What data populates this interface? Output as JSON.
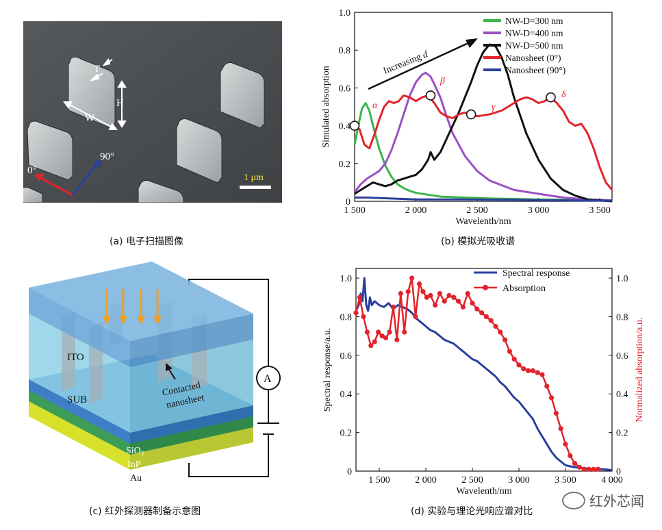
{
  "panel_a": {
    "labels": {
      "T": "T",
      "H": "H",
      "W": "W",
      "deg0": "0°",
      "deg90": "90°",
      "scale": "1 μm"
    },
    "caption": "(a) 电子扫描图像"
  },
  "panel_b": {
    "caption": "(b) 模拟光吸收谱",
    "annotations": {
      "increasing": "Increasing ",
      "d": "d",
      "alpha": "α",
      "beta": "β",
      "gamma": "γ",
      "delta": "δ"
    }
  },
  "panel_c": {
    "caption": "(c) 红外探测器制备示意图",
    "labels": {
      "ito": "ITO",
      "sub": "SUB",
      "contacted1": "Contacted",
      "contacted2": "nanosheet",
      "ammeter": "A",
      "sio2": "SiO",
      "sio2_sub": "2",
      "inp": "InP",
      "au": "Au"
    }
  },
  "panel_d": {
    "caption": "(d) 实验与理论光响应谱对比"
  },
  "watermark": "红外芯闻",
  "colors": {
    "green": "#3db54a",
    "purple": "#9b4fc4",
    "black": "#111111",
    "red": "#e3232b",
    "blue": "#2a3f9e"
  },
  "chart_data": [
    {
      "type": "line",
      "xlabel": "Wavelenth/nm",
      "ylabel": "Simulated absorption",
      "xlim": [
        1500,
        3600
      ],
      "ylim": [
        0,
        1.0
      ],
      "xticks": [
        1500,
        2000,
        2500,
        3000,
        3500
      ],
      "xtick_labels": [
        "1 500",
        "2 000",
        "2 500",
        "3 000",
        "3 500"
      ],
      "yticks": [
        0,
        0.2,
        0.4,
        0.6,
        0.8,
        1.0
      ],
      "ytick_labels": [
        "0",
        "0.2",
        "0.4",
        "0.6",
        "0.8",
        "1.0"
      ],
      "legend_position": "top-right",
      "series": [
        {
          "name": "NW-D=300 nm",
          "color": "#3db54a",
          "x": [
            1500,
            1530,
            1560,
            1590,
            1620,
            1650,
            1700,
            1750,
            1800,
            1850,
            1900,
            1950,
            2000,
            2100,
            2200,
            2400,
            2600,
            3000,
            3600
          ],
          "y": [
            0.3,
            0.4,
            0.49,
            0.52,
            0.48,
            0.4,
            0.28,
            0.19,
            0.13,
            0.09,
            0.07,
            0.055,
            0.045,
            0.035,
            0.025,
            0.02,
            0.015,
            0.01,
            0.005
          ]
        },
        {
          "name": "NW-D=400 nm",
          "color": "#9b4fc4",
          "x": [
            1500,
            1550,
            1600,
            1650,
            1700,
            1750,
            1800,
            1850,
            1900,
            1950,
            2000,
            2050,
            2080,
            2120,
            2150,
            2200,
            2250,
            2300,
            2400,
            2500,
            2600,
            2800,
            3000,
            3200,
            3400,
            3600
          ],
          "y": [
            0.05,
            0.09,
            0.12,
            0.14,
            0.16,
            0.2,
            0.27,
            0.36,
            0.46,
            0.56,
            0.63,
            0.67,
            0.68,
            0.66,
            0.62,
            0.55,
            0.45,
            0.36,
            0.24,
            0.16,
            0.11,
            0.06,
            0.04,
            0.02,
            0.01,
            0.005
          ]
        },
        {
          "name": "NW-D=500 nm",
          "color": "#111111",
          "x": [
            1500,
            1550,
            1600,
            1650,
            1700,
            1750,
            1800,
            1850,
            1900,
            1950,
            2000,
            2050,
            2100,
            2120,
            2150,
            2200,
            2250,
            2300,
            2350,
            2400,
            2450,
            2500,
            2550,
            2600,
            2650,
            2700,
            2750,
            2800,
            2900,
            3000,
            3100,
            3200,
            3300,
            3400,
            3500,
            3600
          ],
          "y": [
            0.04,
            0.06,
            0.08,
            0.1,
            0.09,
            0.08,
            0.09,
            0.11,
            0.12,
            0.13,
            0.14,
            0.17,
            0.22,
            0.26,
            0.22,
            0.26,
            0.33,
            0.4,
            0.47,
            0.55,
            0.63,
            0.72,
            0.79,
            0.83,
            0.82,
            0.76,
            0.67,
            0.55,
            0.36,
            0.22,
            0.12,
            0.06,
            0.03,
            0.01,
            0.005,
            0.0
          ]
        },
        {
          "name": "Nanosheet (0°)",
          "color": "#e3232b",
          "x": [
            1500,
            1540,
            1580,
            1620,
            1660,
            1700,
            1740,
            1780,
            1820,
            1860,
            1900,
            1950,
            2000,
            2050,
            2100,
            2150,
            2200,
            2250,
            2300,
            2350,
            2400,
            2450,
            2500,
            2600,
            2700,
            2800,
            2850,
            2900,
            2950,
            3000,
            3050,
            3100,
            3150,
            3200,
            3250,
            3300,
            3350,
            3400,
            3450,
            3500,
            3550,
            3600
          ],
          "y": [
            0.4,
            0.38,
            0.3,
            0.28,
            0.35,
            0.43,
            0.5,
            0.53,
            0.52,
            0.53,
            0.56,
            0.55,
            0.53,
            0.55,
            0.56,
            0.52,
            0.47,
            0.45,
            0.44,
            0.46,
            0.47,
            0.46,
            0.45,
            0.46,
            0.48,
            0.52,
            0.54,
            0.55,
            0.54,
            0.52,
            0.53,
            0.55,
            0.52,
            0.48,
            0.42,
            0.4,
            0.41,
            0.36,
            0.28,
            0.18,
            0.1,
            0.06
          ]
        },
        {
          "name": "Nanosheet (90°)",
          "color": "#2a3f9e",
          "x": [
            1500,
            1600,
            1800,
            2000,
            2400,
            2800,
            3200,
            3600
          ],
          "y": [
            0.02,
            0.02,
            0.015,
            0.01,
            0.01,
            0.008,
            0.005,
            0.003
          ]
        }
      ],
      "markers": [
        {
          "x": 1500,
          "y": 0.4
        },
        {
          "x": 2120,
          "y": 0.56
        },
        {
          "x": 2450,
          "y": 0.46
        },
        {
          "x": 3100,
          "y": 0.55
        }
      ]
    },
    {
      "type": "line",
      "xlabel": "Wavelenth/nm",
      "ylabel": "Spectral response/a.u.",
      "y2label": "Normalized absorption/a.u.",
      "xlim": [
        1250,
        4000
      ],
      "ylim": [
        0,
        1.05
      ],
      "xticks": [
        1500,
        2000,
        2500,
        3000,
        3500,
        4000
      ],
      "xtick_labels": [
        "1 500",
        "2 000",
        "2 500",
        "3 000",
        "3 500",
        "4 000"
      ],
      "yticks": [
        0,
        0.2,
        0.4,
        0.6,
        0.8,
        1.0
      ],
      "ytick_labels": [
        "0",
        "0.2",
        "0.4",
        "0.6",
        "0.8",
        "1.0"
      ],
      "legend_position": "top-center",
      "series": [
        {
          "name": "Spectral response",
          "color": "#2a3f9e",
          "x": [
            1250,
            1280,
            1300,
            1320,
            1340,
            1360,
            1380,
            1400,
            1420,
            1450,
            1500,
            1550,
            1600,
            1650,
            1700,
            1750,
            1800,
            1850,
            1900,
            1950,
            2000,
            2050,
            2100,
            2150,
            2200,
            2250,
            2300,
            2350,
            2400,
            2450,
            2500,
            2550,
            2600,
            2650,
            2700,
            2750,
            2800,
            2850,
            2900,
            2950,
            3000,
            3050,
            3100,
            3150,
            3200,
            3250,
            3300,
            3350,
            3400,
            3450,
            3500,
            3600,
            3700,
            3800,
            3900,
            4000
          ],
          "y": [
            0.83,
            0.86,
            0.92,
            0.88,
            1.0,
            0.86,
            0.83,
            0.9,
            0.86,
            0.88,
            0.86,
            0.85,
            0.87,
            0.84,
            0.86,
            0.85,
            0.84,
            0.82,
            0.79,
            0.77,
            0.75,
            0.73,
            0.72,
            0.7,
            0.68,
            0.67,
            0.66,
            0.64,
            0.62,
            0.6,
            0.58,
            0.57,
            0.55,
            0.53,
            0.51,
            0.49,
            0.46,
            0.44,
            0.41,
            0.38,
            0.36,
            0.33,
            0.3,
            0.27,
            0.22,
            0.18,
            0.14,
            0.1,
            0.07,
            0.05,
            0.03,
            0.02,
            0.015,
            0.01,
            0.01,
            0.005
          ]
        },
        {
          "name": "Absorption",
          "color": "#e3232b",
          "x": [
            1250,
            1290,
            1330,
            1370,
            1410,
            1450,
            1490,
            1530,
            1570,
            1610,
            1650,
            1690,
            1730,
            1770,
            1810,
            1850,
            1890,
            1930,
            1970,
            2010,
            2050,
            2100,
            2150,
            2200,
            2250,
            2300,
            2350,
            2400,
            2450,
            2500,
            2550,
            2600,
            2650,
            2700,
            2750,
            2800,
            2850,
            2900,
            2950,
            3000,
            3050,
            3100,
            3150,
            3200,
            3250,
            3300,
            3350,
            3400,
            3450,
            3500,
            3550,
            3600,
            3650,
            3700,
            3750,
            3800,
            3850
          ],
          "y": [
            0.82,
            0.9,
            0.8,
            0.72,
            0.65,
            0.67,
            0.72,
            0.7,
            0.69,
            0.72,
            0.85,
            0.68,
            0.92,
            0.72,
            0.93,
            1.0,
            0.8,
            0.97,
            0.93,
            0.9,
            0.91,
            0.86,
            0.92,
            0.88,
            0.91,
            0.9,
            0.88,
            0.85,
            0.92,
            0.87,
            0.84,
            0.82,
            0.8,
            0.78,
            0.75,
            0.72,
            0.68,
            0.62,
            0.58,
            0.55,
            0.53,
            0.52,
            0.52,
            0.51,
            0.5,
            0.44,
            0.38,
            0.3,
            0.22,
            0.14,
            0.08,
            0.04,
            0.02,
            0.01,
            0.01,
            0.01,
            0.01
          ]
        }
      ]
    }
  ]
}
